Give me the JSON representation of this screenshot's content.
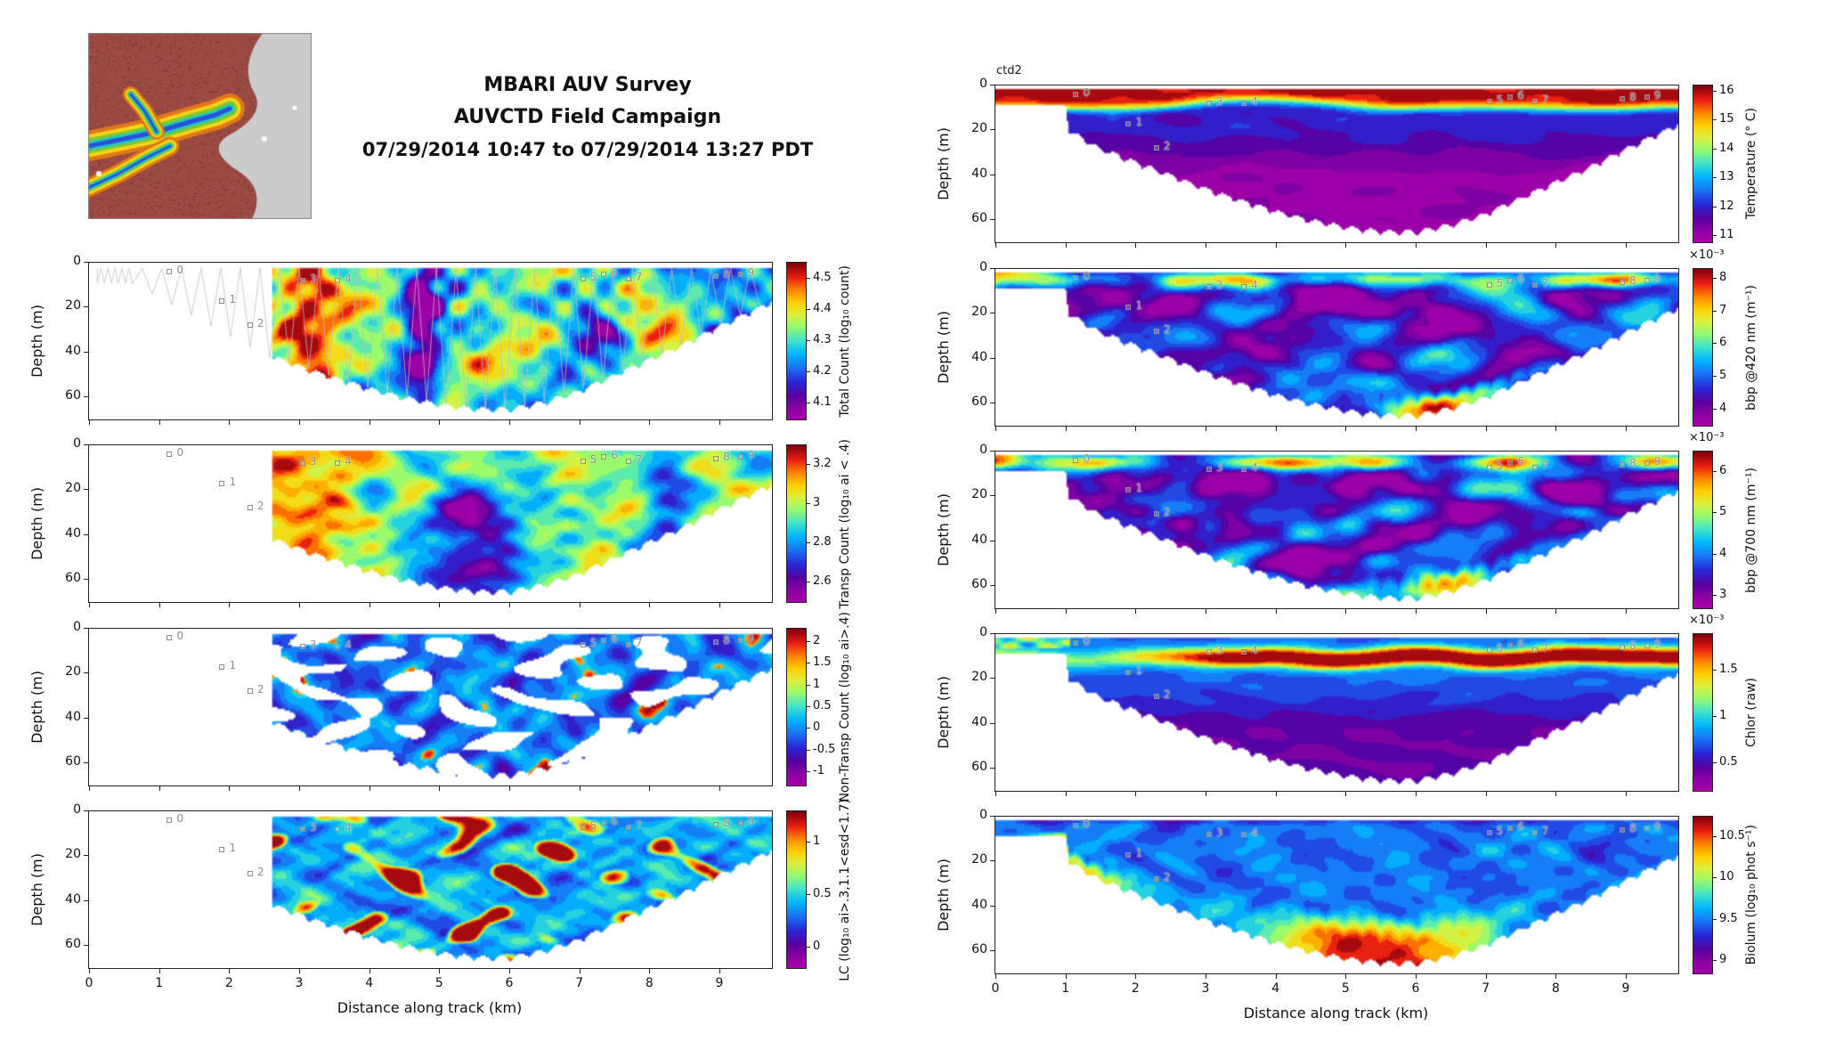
{
  "title": {
    "line1": "MBARI AUV Survey",
    "line2": "AUVCTD Field Campaign",
    "line3": "07/29/2014 10:47 to 07/29/2014 13:27 PDT"
  },
  "ctd_label": "ctd2",
  "map": {
    "name": "monterey-bay-bathymetry-overview"
  },
  "axes": {
    "xlabel": "Distance along track (km)",
    "ylabel": "Depth (m)",
    "x_ticks": [
      0,
      1,
      2,
      3,
      4,
      5,
      6,
      7,
      8,
      9
    ],
    "y_ticks": [
      0,
      20,
      40,
      60
    ],
    "x_max_km": 9.75,
    "depth_max_m": 70
  },
  "waypoints": [
    {
      "label": "0",
      "x_km": 1.15,
      "depth_m": 4
    },
    {
      "label": "1",
      "x_km": 1.9,
      "depth_m": 17
    },
    {
      "label": "2",
      "x_km": 2.3,
      "depth_m": 28
    },
    {
      "label": "3",
      "x_km": 3.05,
      "depth_m": 8
    },
    {
      "label": "4",
      "x_km": 3.55,
      "depth_m": 8
    },
    {
      "label": "5",
      "x_km": 7.05,
      "depth_m": 7
    },
    {
      "label": "6",
      "x_km": 7.35,
      "depth_m": 5
    },
    {
      "label": "7",
      "x_km": 7.7,
      "depth_m": 7
    },
    {
      "label": "8",
      "x_km": 8.95,
      "depth_m": 6
    },
    {
      "label": "9",
      "x_km": 9.3,
      "depth_m": 5
    }
  ],
  "left_panels": [
    {
      "id": "total-count",
      "pattern": "totalcount",
      "seed": 11,
      "colorbar": {
        "label": "Total Count (log₁₀ count)",
        "ticks": [
          4.1,
          4.2,
          4.3,
          4.4,
          4.5
        ],
        "min": 4.05,
        "max": 4.55
      }
    },
    {
      "id": "transp-count",
      "pattern": "transp",
      "seed": 22,
      "colorbar": {
        "label": "Transp Count (log₁₀ ai < .4)",
        "ticks": [
          2.6,
          2.8,
          3,
          3.2
        ],
        "min": 2.5,
        "max": 3.3
      }
    },
    {
      "id": "non-transp-count",
      "pattern": "nontransp",
      "seed": 33,
      "colorbar": {
        "label": "Non-Transp Count (log₁₀ ai>.4)",
        "ticks": [
          -1,
          -0.5,
          0,
          0.5,
          1,
          1.5,
          2
        ],
        "min": -1.3,
        "max": 2.3
      }
    },
    {
      "id": "lc",
      "pattern": "lc",
      "seed": 44,
      "colorbar": {
        "label": "LC (log₁₀ ai>.3,1.1<esd<1.7)",
        "ticks": [
          0,
          0.5,
          1
        ],
        "min": -0.2,
        "max": 1.3
      }
    }
  ],
  "right_panels": [
    {
      "id": "temperature",
      "pattern": "temperature",
      "seed": 55,
      "colorbar": {
        "label": "Temperature (° C)",
        "ticks": [
          11,
          12,
          13,
          14,
          15,
          16
        ],
        "min": 10.8,
        "max": 16.2
      }
    },
    {
      "id": "bbp-420",
      "pattern": "bbp",
      "seed": 66,
      "colorbar": {
        "label": "bbp @420 nm (m⁻¹)",
        "ticks": [
          4,
          5,
          6,
          7,
          8
        ],
        "min": 3.5,
        "max": 8.3,
        "exponent": "×10⁻³"
      }
    },
    {
      "id": "bbp-700",
      "pattern": "bbp",
      "seed": 77,
      "colorbar": {
        "label": "bbp @700 nm (m⁻¹)",
        "ticks": [
          3,
          4,
          5,
          6
        ],
        "min": 2.7,
        "max": 6.5,
        "exponent": "×10⁻³"
      }
    },
    {
      "id": "chlor",
      "pattern": "chlor",
      "seed": 88,
      "colorbar": {
        "label": "Chlor (raw)",
        "ticks": [
          0.5,
          1,
          1.5
        ],
        "min": 0.2,
        "max": 1.9,
        "exponent": "×10⁻³"
      }
    },
    {
      "id": "biolum",
      "pattern": "biolum",
      "seed": 99,
      "colorbar": {
        "label": "Biolum (log₁₀ phot s⁻¹)",
        "ticks": [
          9,
          9.5,
          10,
          10.5
        ],
        "min": 8.85,
        "max": 10.75
      }
    }
  ],
  "chart_data": [
    {
      "panel": "Total Count",
      "type": "heatmap",
      "x": "Distance along track (km)",
      "x_range": [
        0,
        9.75
      ],
      "y": "Depth (m)",
      "y_range": [
        0,
        70
      ],
      "data_extent_km": [
        2.6,
        9.75
      ],
      "colorbar_label": "Total Count (log₁₀ count)",
      "colorbar_ticks": [
        4.1,
        4.2,
        4.3,
        4.4,
        4.5
      ],
      "notes": "AUV sawtooth track line overlaid; red high counts (≈4.5) 2.8–3.8 km over full depth; purple low (≈4.1) column near 4.7 km; alternating cyan/blue columns 5–9.7 km."
    },
    {
      "panel": "Transp Count",
      "type": "heatmap",
      "x": "Distance along track (km)",
      "x_range": [
        0,
        9.75
      ],
      "y": "Depth (m)",
      "y_range": [
        0,
        70
      ],
      "data_extent_km": [
        2.6,
        9.75
      ],
      "colorbar_label": "Transp Count (log₁₀ ai < .4)",
      "colorbar_ticks": [
        2.6,
        2.8,
        3,
        3.2
      ],
      "notes": "Orange/yellow high counts west of 4 km; magenta low band 4–6 km at mid-depth; patchy green/cyan east."
    },
    {
      "panel": "Non-Transp Count",
      "type": "heatmap",
      "x": "Distance along track (km)",
      "x_range": [
        0,
        9.75
      ],
      "y": "Depth (m)",
      "y_range": [
        0,
        70
      ],
      "data_extent_km": [
        2.6,
        9.75
      ],
      "colorbar_label": "Non-Transp Count (log₁₀ ai>.4)",
      "colorbar_ticks": [
        -1,
        -0.5,
        0,
        0.5,
        1,
        1.5,
        2
      ],
      "notes": "Sparse patchy field, mostly blue (≈0–0.5) with many white gaps and isolated red blobs (≈2)."
    },
    {
      "panel": "LC",
      "type": "heatmap",
      "x": "Distance along track (km)",
      "x_range": [
        0,
        9.75
      ],
      "y": "Depth (m)",
      "y_range": [
        0,
        70
      ],
      "data_extent_km": [
        2.6,
        9.75
      ],
      "colorbar_label": "LC (log₁₀ ai>.3,1.1<esd<1.7)",
      "colorbar_ticks": [
        0,
        0.5,
        1
      ],
      "notes": "Mostly blue/cyan (≈0.2–0.6) with scattered small dark-red blobs (≈1.2)."
    },
    {
      "panel": "Temperature",
      "type": "heatmap",
      "x": "Distance along track (km)",
      "x_range": [
        0,
        9.75
      ],
      "y": "Depth (m)",
      "y_range": [
        0,
        70
      ],
      "data_extent_km": [
        0,
        9.75
      ],
      "colorbar_label": "Temperature (° C)",
      "colorbar_ticks": [
        11,
        12,
        13,
        14,
        15,
        16
      ],
      "annotation": "ctd2",
      "notes": "Warm ≈15.5–16 °C surface layer above sharp thermocline at 8–20 m; ≈11–12 °C purple/magenta water below 30 m in bowl-shaped section."
    },
    {
      "panel": "bbp @420 nm",
      "type": "heatmap",
      "x": "Distance along track (km)",
      "x_range": [
        0,
        9.75
      ],
      "y": "Depth (m)",
      "y_range": [
        0,
        70
      ],
      "data_extent_km": [
        0,
        9.75
      ],
      "colorbar_label": "bbp @420 nm (m⁻¹)",
      "colorbar_scale": "×10⁻³",
      "colorbar_ticks": [
        4,
        5,
        6,
        7,
        8
      ],
      "notes": "Red high backscatter (≈8×10⁻³) at 0–1 km and in near-surface ribbon; magenta low interior (≈4×10⁻³); warm patches near bottom 6–8 km."
    },
    {
      "panel": "bbp @700 nm",
      "type": "heatmap",
      "x": "Distance along track (km)",
      "x_range": [
        0,
        9.75
      ],
      "y": "Depth (m)",
      "y_range": [
        0,
        70
      ],
      "data_extent_km": [
        0,
        9.75
      ],
      "colorbar_label": "bbp @700 nm (m⁻¹)",
      "colorbar_scale": "×10⁻³",
      "colorbar_ticks": [
        3,
        4,
        5,
        6
      ],
      "notes": "Same structure as 420 nm channel with range ≈3–6×10⁻³."
    },
    {
      "panel": "Chlor",
      "type": "heatmap",
      "x": "Distance along track (km)",
      "x_range": [
        0,
        9.75
      ],
      "y": "Depth (m)",
      "y_range": [
        0,
        70
      ],
      "data_extent_km": [
        0,
        9.75
      ],
      "colorbar_label": "Chlor (raw)",
      "colorbar_scale": "×10⁻³",
      "colorbar_ticks": [
        0.5,
        1,
        1.5
      ],
      "notes": "Strong subsurface chlorophyll maximum (dark red, ≈1.8) at 8–15 m depth from ≈3–9.5 km; low purple values below 25 m."
    },
    {
      "panel": "Biolum",
      "type": "heatmap",
      "x": "Distance along track (km)",
      "x_range": [
        0,
        9.75
      ],
      "y": "Depth (m)",
      "y_range": [
        0,
        70
      ],
      "data_extent_km": [
        0,
        9.75
      ],
      "colorbar_label": "Biolum (log₁₀ phot s⁻¹)",
      "colorbar_ticks": [
        9,
        9.5,
        10,
        10.5
      ],
      "notes": "Low (blue, ≈9.3–9.6) upper water column; high bioluminescence (red, ≈10.5) near bottom between ≈4.5 and 6.5 km."
    }
  ]
}
